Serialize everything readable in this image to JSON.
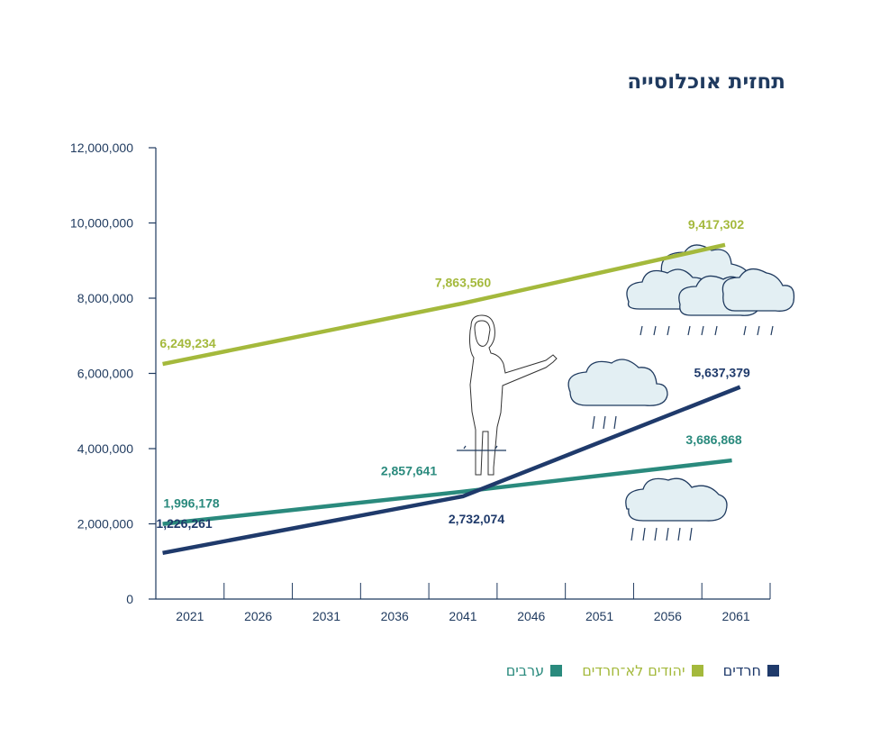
{
  "chart_data": {
    "type": "line",
    "title": "תחזית אוכלוסייה",
    "xlabel": "",
    "ylabel": "",
    "x": [
      2021,
      2041,
      2061
    ],
    "x_ticks": [
      "2021",
      "2026",
      "2031",
      "2036",
      "2041",
      "2046",
      "2051",
      "2056",
      "2061"
    ],
    "y_ticks": [
      "0",
      "2,000,000",
      "4,000,000",
      "6,000,000",
      "8,000,000",
      "10,000,000",
      "12,000,000"
    ],
    "ylim": [
      0,
      12000000
    ],
    "grid": false,
    "legend_position": "bottom",
    "series": [
      {
        "name": "יהודים לא־חרדים",
        "color": "#a4b93c",
        "values": [
          6249234,
          7863560,
          9417302
        ],
        "labels": [
          "6,249,234",
          "7,863,560",
          "9,417,302"
        ]
      },
      {
        "name": "ערבים",
        "color": "#2a8a7d",
        "values": [
          1996178,
          2857641,
          3686868
        ],
        "labels": [
          "1,996,178",
          "2,857,641",
          "3,686,868"
        ]
      },
      {
        "name": "חרדים",
        "color": "#1f3a6b",
        "values": [
          1226261,
          2732074,
          5637379
        ],
        "labels": [
          "1,226,261",
          "2,732,074",
          "5,637,379"
        ]
      }
    ]
  },
  "legend": {
    "items": [
      {
        "label": "חרדים",
        "color": "#1f3a6b"
      },
      {
        "label": "יהודים לא־חרדים",
        "color": "#a4b93c"
      },
      {
        "label": "ערבים",
        "color": "#2a8a7d"
      }
    ]
  },
  "illustration": {
    "icons": [
      "rain-cloud-icon",
      "woman-pointing-icon"
    ]
  }
}
